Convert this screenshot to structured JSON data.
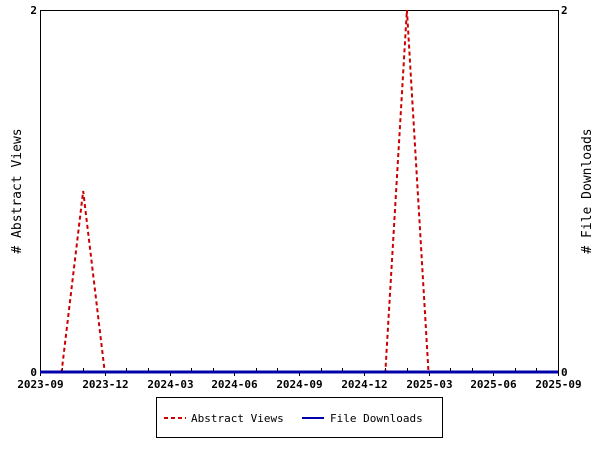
{
  "chart_data": {
    "type": "line",
    "title": "",
    "xlabel": "",
    "ylabel": "# Abstract Views",
    "y2label": "# File Downloads",
    "ylim": [
      0,
      2
    ],
    "y2lim": [
      0,
      2
    ],
    "xlim": [
      "2023-09",
      "2025-09"
    ],
    "x_ticks": [
      "2023-09",
      "2023-12",
      "2024-03",
      "2024-06",
      "2024-09",
      "2024-12",
      "2025-03",
      "2025-06",
      "2025-09"
    ],
    "y_ticks": [
      "0",
      "2"
    ],
    "y2_ticks": [
      "0",
      "2"
    ],
    "x": [
      "2023-09",
      "2023-10",
      "2023-11",
      "2023-12",
      "2024-01",
      "2024-02",
      "2024-03",
      "2024-04",
      "2024-05",
      "2024-06",
      "2024-07",
      "2024-08",
      "2024-09",
      "2024-10",
      "2024-11",
      "2024-12",
      "2025-01",
      "2025-02",
      "2025-03",
      "2025-04",
      "2025-05",
      "2025-06",
      "2025-07",
      "2025-08",
      "2025-09"
    ],
    "series": [
      {
        "name": "Abstract Views",
        "color": "#cc0000",
        "style": "dashed",
        "axis": "left",
        "values": [
          0,
          0,
          1,
          0,
          0,
          0,
          0,
          0,
          0,
          0,
          0,
          0,
          0,
          0,
          0,
          0,
          0,
          2,
          0,
          0,
          0,
          0,
          0,
          0,
          0
        ]
      },
      {
        "name": "File Downloads",
        "color": "#0000aa",
        "style": "solid",
        "axis": "right",
        "values": [
          0,
          0,
          0,
          0,
          0,
          0,
          0,
          0,
          0,
          0,
          0,
          0,
          0,
          0,
          0,
          0,
          0,
          0,
          0,
          0,
          0,
          0,
          0,
          0,
          0
        ]
      }
    ],
    "legend": "bottom-center",
    "grid": false
  }
}
